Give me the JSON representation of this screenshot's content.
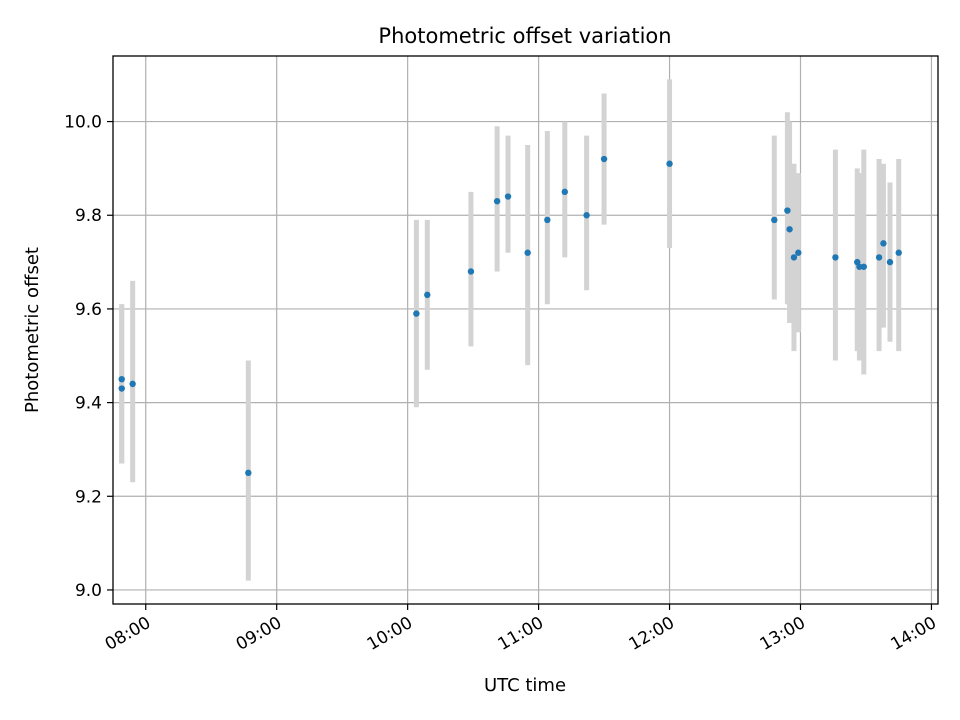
{
  "chart_data": {
    "type": "scatter",
    "title": "Photometric offset variation",
    "xlabel": "UTC time",
    "ylabel": "Photometric offset",
    "x_axis": "time",
    "xlim": [
      "07:45",
      "14:03"
    ],
    "ylim": [
      8.97,
      10.14
    ],
    "xticks": [
      "08:00",
      "09:00",
      "10:00",
      "11:00",
      "12:00",
      "13:00",
      "14:00"
    ],
    "yticks": [
      9.0,
      9.2,
      9.4,
      9.6,
      9.8,
      10.0
    ],
    "grid": true,
    "marker_color": "#1f77b4",
    "errorbar_color": "#d3d3d3",
    "points": [
      {
        "x": "07:49",
        "y": 9.45,
        "ylow": 9.27,
        "yhigh": 9.61
      },
      {
        "x": "07:49",
        "y": 9.43,
        "ylow": 9.27,
        "yhigh": 9.61
      },
      {
        "x": "07:54",
        "y": 9.44,
        "ylow": 9.23,
        "yhigh": 9.66
      },
      {
        "x": "08:47",
        "y": 9.25,
        "ylow": 9.02,
        "yhigh": 9.49
      },
      {
        "x": "10:04",
        "y": 9.59,
        "ylow": 9.39,
        "yhigh": 9.79
      },
      {
        "x": "10:09",
        "y": 9.63,
        "ylow": 9.47,
        "yhigh": 9.79
      },
      {
        "x": "10:29",
        "y": 9.68,
        "ylow": 9.52,
        "yhigh": 9.85
      },
      {
        "x": "10:41",
        "y": 9.83,
        "ylow": 9.68,
        "yhigh": 9.99
      },
      {
        "x": "10:46",
        "y": 9.84,
        "ylow": 9.72,
        "yhigh": 9.97
      },
      {
        "x": "10:55",
        "y": 9.72,
        "ylow": 9.48,
        "yhigh": 9.95
      },
      {
        "x": "11:04",
        "y": 9.79,
        "ylow": 9.61,
        "yhigh": 9.98
      },
      {
        "x": "11:12",
        "y": 9.85,
        "ylow": 9.71,
        "yhigh": 10.0
      },
      {
        "x": "11:22",
        "y": 9.8,
        "ylow": 9.64,
        "yhigh": 9.97
      },
      {
        "x": "11:30",
        "y": 9.92,
        "ylow": 9.78,
        "yhigh": 10.06
      },
      {
        "x": "12:00",
        "y": 9.91,
        "ylow": 9.73,
        "yhigh": 10.09
      },
      {
        "x": "12:48",
        "y": 9.79,
        "ylow": 9.62,
        "yhigh": 9.97
      },
      {
        "x": "12:54",
        "y": 9.81,
        "ylow": 9.61,
        "yhigh": 10.02
      },
      {
        "x": "12:55",
        "y": 9.77,
        "ylow": 9.57,
        "yhigh": 10.0
      },
      {
        "x": "12:57",
        "y": 9.71,
        "ylow": 9.51,
        "yhigh": 9.91
      },
      {
        "x": "12:59",
        "y": 9.72,
        "ylow": 9.55,
        "yhigh": 9.89
      },
      {
        "x": "13:16",
        "y": 9.71,
        "ylow": 9.49,
        "yhigh": 9.94
      },
      {
        "x": "13:26",
        "y": 9.7,
        "ylow": 9.51,
        "yhigh": 9.9
      },
      {
        "x": "13:27",
        "y": 9.69,
        "ylow": 9.49,
        "yhigh": 9.89
      },
      {
        "x": "13:29",
        "y": 9.69,
        "ylow": 9.46,
        "yhigh": 9.94
      },
      {
        "x": "13:36",
        "y": 9.71,
        "ylow": 9.51,
        "yhigh": 9.92
      },
      {
        "x": "13:38",
        "y": 9.74,
        "ylow": 9.56,
        "yhigh": 9.91
      },
      {
        "x": "13:41",
        "y": 9.7,
        "ylow": 9.53,
        "yhigh": 9.87
      },
      {
        "x": "13:45",
        "y": 9.72,
        "ylow": 9.51,
        "yhigh": 9.92
      }
    ]
  }
}
